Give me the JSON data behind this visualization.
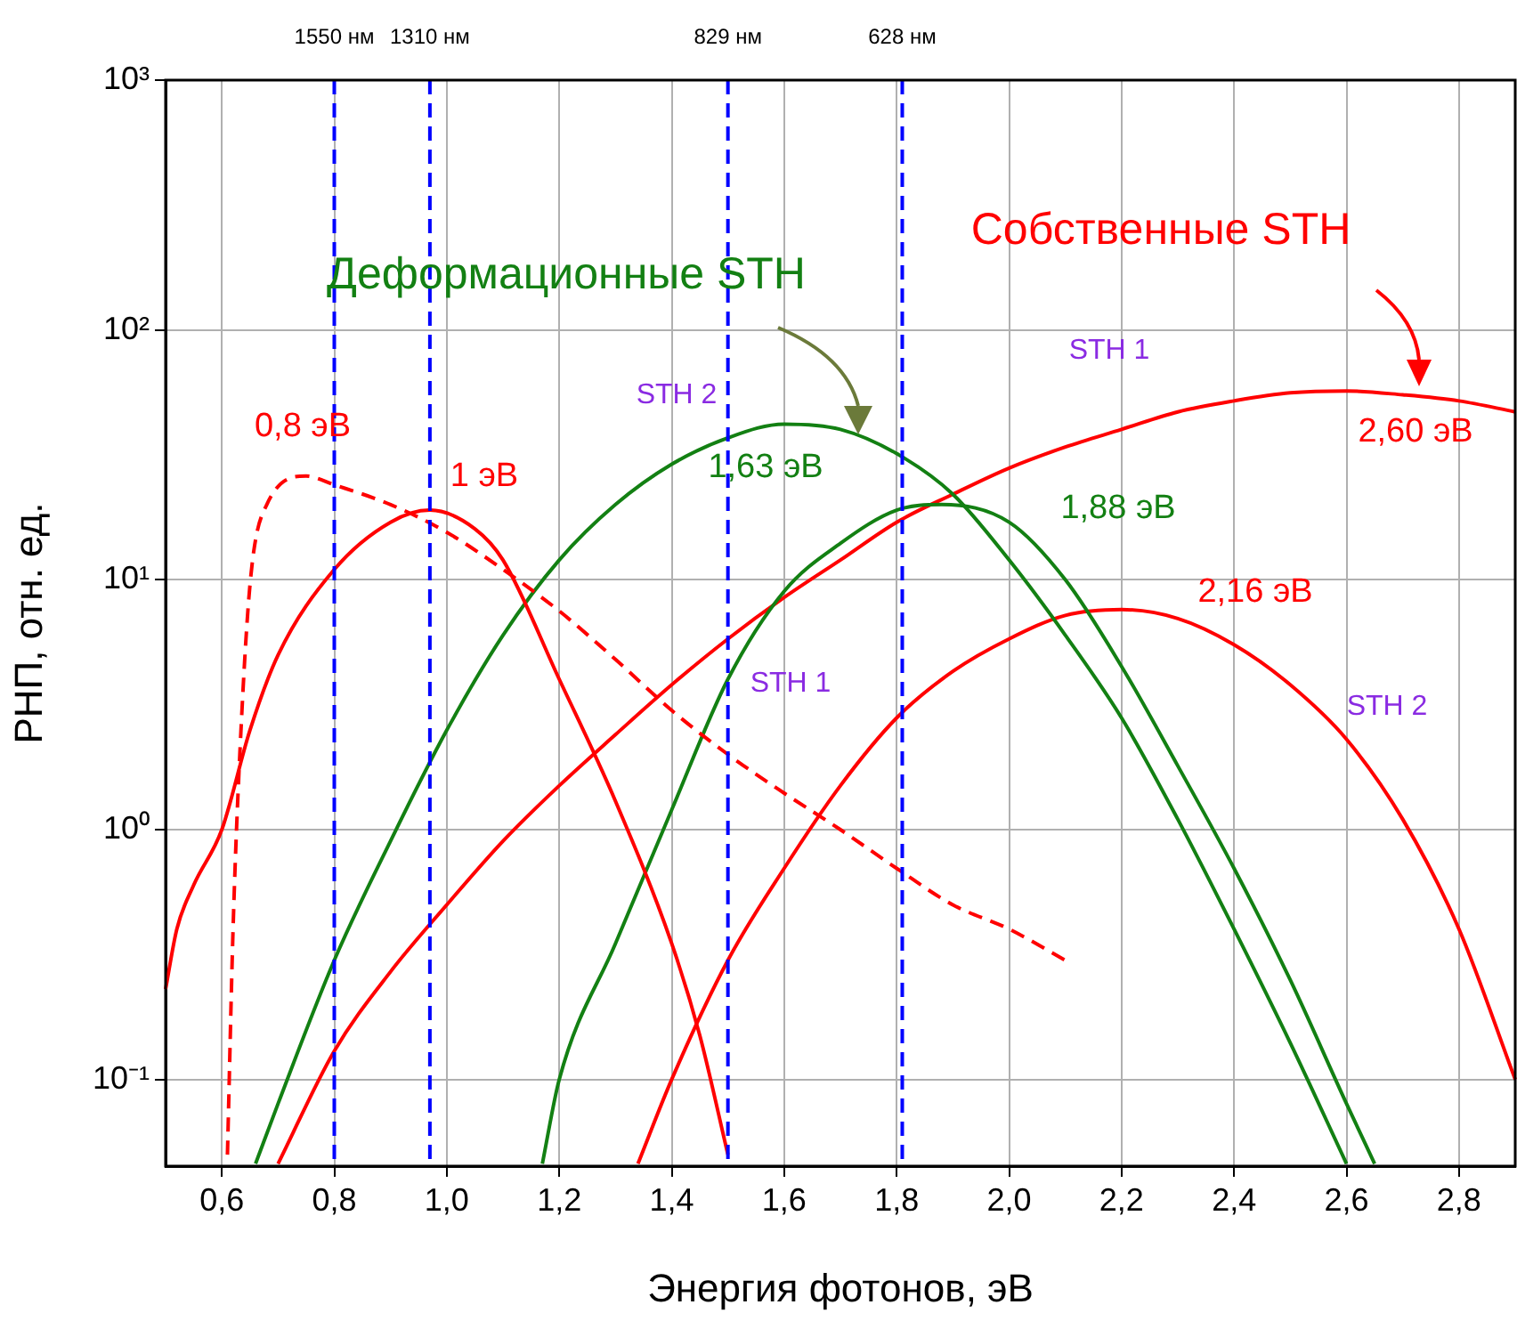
{
  "chart_data": {
    "type": "line",
    "xlabel": "Энергия фотонов, эВ",
    "ylabel": "РНП, отн. ед.",
    "log": "y",
    "grid": true,
    "legend": false,
    "marker": "none",
    "xlim": [
      0.5,
      2.9
    ],
    "ylim": [
      0.045,
      1000
    ],
    "xticks": [
      {
        "value": 0.6,
        "label": "0,6"
      },
      {
        "value": 0.8,
        "label": "0,8"
      },
      {
        "value": 1.0,
        "label": "1,0"
      },
      {
        "value": 1.2,
        "label": "1,2"
      },
      {
        "value": 1.4,
        "label": "1,4"
      },
      {
        "value": 1.6,
        "label": "1,6"
      },
      {
        "value": 1.8,
        "label": "1,8"
      },
      {
        "value": 2.0,
        "label": "2,0"
      },
      {
        "value": 2.2,
        "label": "2,2"
      },
      {
        "value": 2.4,
        "label": "2,4"
      },
      {
        "value": 2.6,
        "label": "2,6"
      },
      {
        "value": 2.8,
        "label": "2,8"
      }
    ],
    "yticks": [
      {
        "value": 0.1,
        "label": "10⁻¹"
      },
      {
        "value": 1,
        "label": "10⁰"
      },
      {
        "value": 10,
        "label": "10¹"
      },
      {
        "value": 100,
        "label": "10²"
      },
      {
        "value": 1000,
        "label": "10³"
      }
    ],
    "series": [
      {
        "color": "#ff0000",
        "line_style": "solid",
        "x": [
          0.5,
          0.52,
          0.55,
          0.6,
          0.65,
          0.7,
          0.8,
          0.9,
          0.97,
          1.05,
          1.1,
          1.2,
          1.3,
          1.4,
          1.45,
          1.5
        ],
        "values": [
          0.23,
          0.4,
          0.6,
          1.0,
          2.5,
          5,
          11,
          17,
          19,
          16,
          12,
          4,
          1.3,
          0.35,
          0.15,
          0.05
        ]
      },
      {
        "color": "#ff0000",
        "line_style": "dashed",
        "x": [
          0.61,
          0.62,
          0.63,
          0.65,
          0.68,
          0.75,
          0.8,
          0.9,
          1.0,
          1.1,
          1.2,
          1.3,
          1.4,
          1.5,
          1.6,
          1.7,
          1.8,
          1.9,
          2.0,
          2.1
        ],
        "values": [
          0.05,
          0.4,
          1.6,
          9.5,
          20,
          26,
          24,
          20,
          15.5,
          11,
          7.5,
          4.8,
          3.0,
          2.0,
          1.4,
          1.0,
          0.7,
          0.5,
          0.4,
          0.3
        ]
      },
      {
        "color": "#138013",
        "line_style": "solid",
        "x": [
          0.66,
          0.7,
          0.8,
          0.9,
          1.0,
          1.1,
          1.2,
          1.3,
          1.4,
          1.5,
          1.6,
          1.7,
          1.8,
          1.9,
          2.0,
          2.1,
          2.2,
          2.3,
          2.4,
          2.5,
          2.6
        ],
        "values": [
          0.046,
          0.08,
          0.3,
          0.9,
          2.5,
          6,
          12,
          20,
          29,
          37,
          42,
          40,
          32,
          22,
          12,
          6,
          2.8,
          1.1,
          0.4,
          0.14,
          0.046
        ]
      },
      {
        "color": "#138013",
        "line_style": "solid",
        "x": [
          1.17,
          1.2,
          1.3,
          1.4,
          1.5,
          1.6,
          1.7,
          1.8,
          1.88,
          2.0,
          2.1,
          2.2,
          2.3,
          2.4,
          2.5,
          2.6,
          2.65
        ],
        "values": [
          0.046,
          0.1,
          0.35,
          1.2,
          4,
          9,
          14,
          19,
          20,
          17,
          10,
          4.5,
          1.8,
          0.7,
          0.25,
          0.08,
          0.046
        ]
      },
      {
        "color": "#ff0000",
        "line_style": "solid",
        "x": [
          1.34,
          1.4,
          1.5,
          1.6,
          1.7,
          1.8,
          1.9,
          2.0,
          2.1,
          2.2,
          2.3,
          2.4,
          2.5,
          2.6,
          2.7,
          2.8,
          2.9
        ],
        "values": [
          0.046,
          0.1,
          0.3,
          0.7,
          1.5,
          2.8,
          4.3,
          5.8,
          7.2,
          7.6,
          7.0,
          5.5,
          3.8,
          2.3,
          1.1,
          0.4,
          0.1
        ]
      },
      {
        "color": "#ff0000",
        "line_style": "solid",
        "x": [
          0.7,
          0.8,
          0.9,
          1.0,
          1.1,
          1.2,
          1.3,
          1.4,
          1.5,
          1.6,
          1.7,
          1.8,
          1.9,
          2.0,
          2.1,
          2.2,
          2.3,
          2.4,
          2.5,
          2.6,
          2.7,
          2.8,
          2.9
        ],
        "values": [
          0.046,
          0.13,
          0.27,
          0.5,
          0.9,
          1.5,
          2.4,
          3.8,
          5.8,
          8.5,
          12,
          17,
          22,
          28,
          34,
          40,
          47,
          52,
          56,
          57,
          55,
          52,
          47
        ]
      }
    ],
    "ref_lines": [
      {
        "axis": "x",
        "value": 0.8,
        "label": "1550 нм",
        "color": "#0000ff",
        "line_style": "dashed"
      },
      {
        "axis": "x",
        "value": 0.97,
        "label": "1310 нм",
        "color": "#0000ff",
        "line_style": "dashed"
      },
      {
        "axis": "x",
        "value": 1.5,
        "label": "829 нм",
        "color": "#0000ff",
        "line_style": "dashed"
      },
      {
        "axis": "x",
        "value": 1.81,
        "label": "628 нм",
        "color": "#0000ff",
        "line_style": "dashed"
      }
    ],
    "annotations": [
      "0,8 эВ",
      "1 эВ",
      "STH 2",
      "1,63 эВ",
      "Деформационные STH",
      "Собственные STH",
      "STH 1",
      "2,60 эВ",
      "1,88 эВ",
      "2,16 эВ",
      "STH 1",
      "STH 2"
    ]
  }
}
